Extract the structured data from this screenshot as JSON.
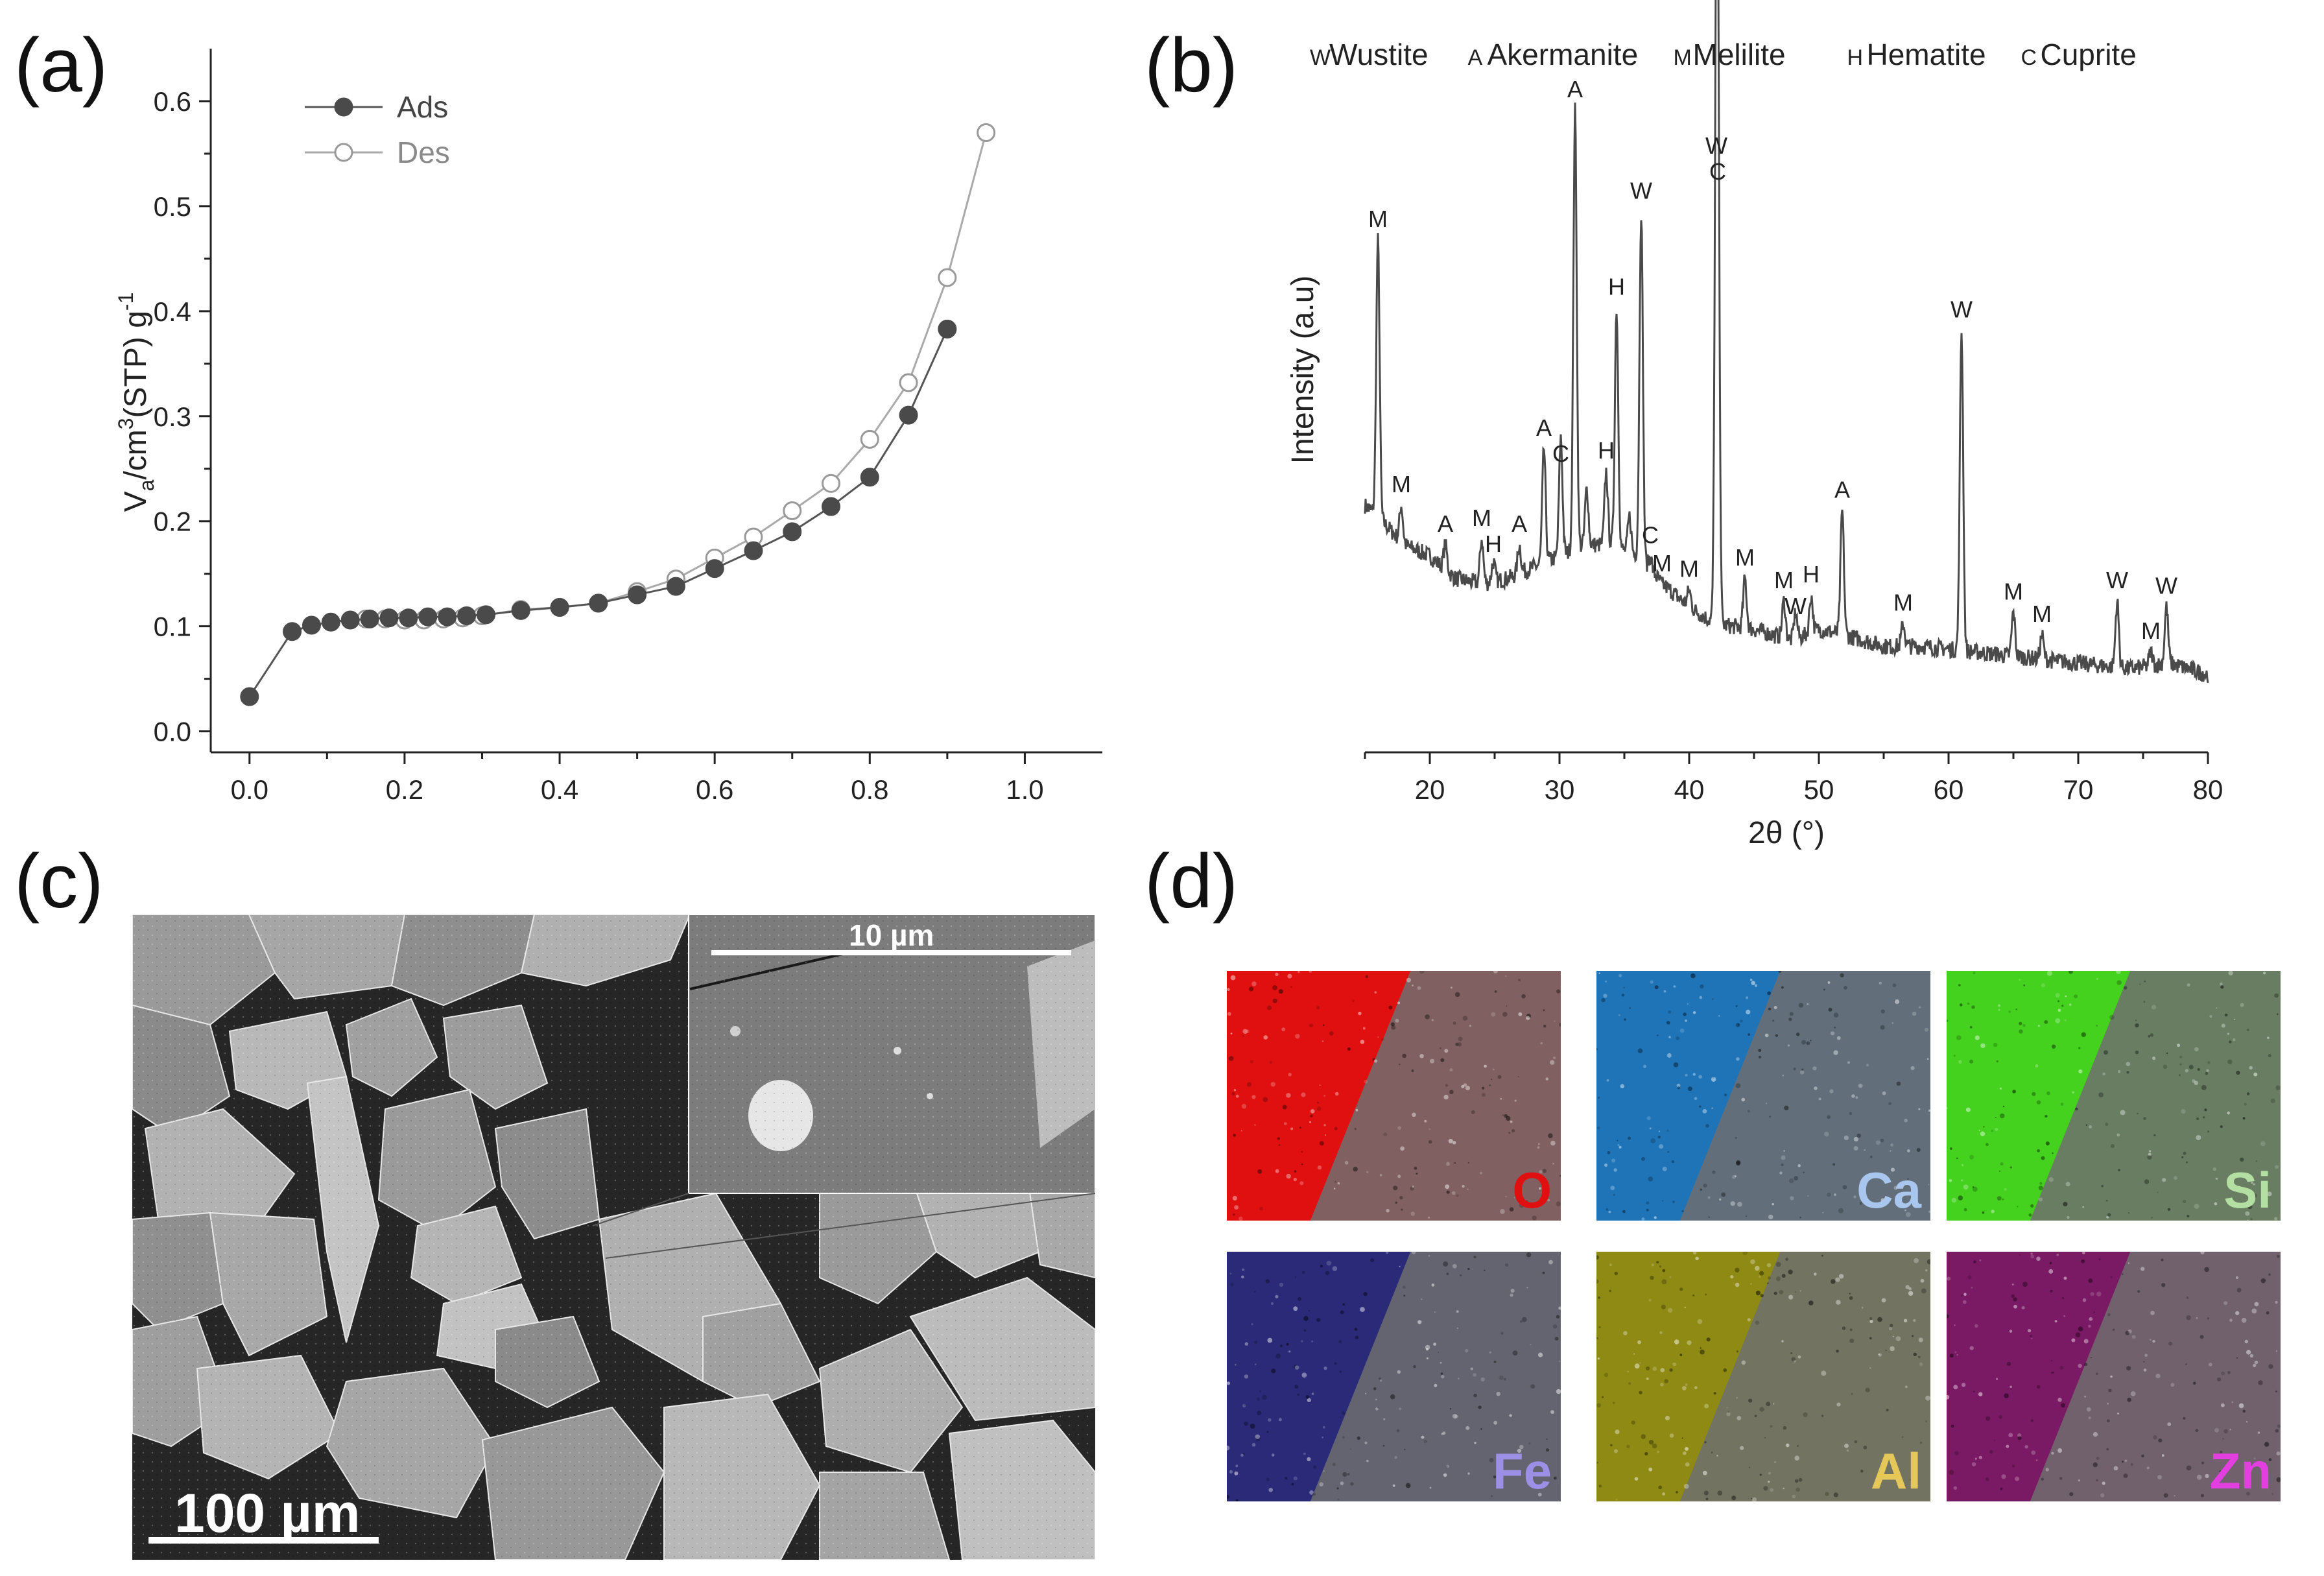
{
  "panels": {
    "a": "(a)",
    "b": "(b)",
    "c": "(c)",
    "d": "(d)"
  },
  "chart_data": [
    {
      "panel": "a",
      "type": "line",
      "ylabel_main": "V",
      "ylabel_sub": "a",
      "ylabel_mid": "/cm",
      "ylabel_sup3": "3",
      "ylabel_tail": "(STP) g",
      "ylabel_sup": "-1",
      "xlabel": "",
      "xlim": [
        -0.05,
        1.1
      ],
      "ylim": [
        -0.02,
        0.65
      ],
      "xticks": [
        "0.0",
        "0.2",
        "0.4",
        "0.6",
        "0.8",
        "1.0"
      ],
      "xtick_values": [
        0,
        0.2,
        0.4,
        0.6,
        0.8,
        1.0
      ],
      "yticks": [
        "0.0",
        "0.1",
        "0.2",
        "0.3",
        "0.4",
        "0.5",
        "0.6"
      ],
      "ytick_values": [
        0,
        0.1,
        0.2,
        0.3,
        0.4,
        0.5,
        0.6
      ],
      "legend_placement": "top-left",
      "series": [
        {
          "name": "Ads",
          "marker": "filled-circle",
          "color": "#555555",
          "x": [
            0.0,
            0.055,
            0.08,
            0.105,
            0.13,
            0.155,
            0.18,
            0.205,
            0.23,
            0.255,
            0.28,
            0.305,
            0.35,
            0.4,
            0.45,
            0.5,
            0.55,
            0.6,
            0.65,
            0.7,
            0.75,
            0.8,
            0.85,
            0.9
          ],
          "y": [
            0.033,
            0.095,
            0.101,
            0.104,
            0.106,
            0.107,
            0.108,
            0.108,
            0.109,
            0.109,
            0.11,
            0.111,
            0.115,
            0.118,
            0.122,
            0.13,
            0.138,
            0.155,
            0.172,
            0.19,
            0.214,
            0.242,
            0.301,
            0.383
          ]
        },
        {
          "name": "Des",
          "marker": "open-circle",
          "color": "#aaaaaa",
          "x": [
            0.95,
            0.9,
            0.85,
            0.8,
            0.75,
            0.7,
            0.65,
            0.6,
            0.55,
            0.5,
            0.45,
            0.4,
            0.35,
            0.3,
            0.275,
            0.25,
            0.225,
            0.2,
            0.175,
            0.15
          ],
          "y": [
            0.57,
            0.432,
            0.332,
            0.278,
            0.236,
            0.21,
            0.185,
            0.165,
            0.145,
            0.133,
            0.122,
            0.118,
            0.116,
            0.11,
            0.108,
            0.107,
            0.106,
            0.106,
            0.107,
            0.107
          ]
        }
      ]
    },
    {
      "panel": "b",
      "type": "line",
      "xlabel": "2θ (°)",
      "ylabel": "Intensity (a.u)",
      "xlim": [
        15,
        80
      ],
      "xticks": [
        "20",
        "30",
        "40",
        "50",
        "60",
        "70",
        "80"
      ],
      "xtick_values": [
        20,
        30,
        40,
        50,
        60,
        70,
        80
      ],
      "yticks_shown": false,
      "legend": [
        {
          "key": "W",
          "name": "Wustite"
        },
        {
          "key": "A",
          "name": "Akermanite"
        },
        {
          "key": "M",
          "name": "Melilite"
        },
        {
          "key": "H",
          "name": "Hematite"
        },
        {
          "key": "C",
          "name": "Cuprite"
        }
      ],
      "baseline": [
        [
          15,
          0.3
        ],
        [
          16,
          0.28
        ],
        [
          18,
          0.23
        ],
        [
          20,
          0.21
        ],
        [
          22,
          0.17
        ],
        [
          24,
          0.16
        ],
        [
          26,
          0.17
        ],
        [
          28,
          0.19
        ],
        [
          30,
          0.21
        ],
        [
          32,
          0.23
        ],
        [
          34,
          0.23
        ],
        [
          36,
          0.21
        ],
        [
          38,
          0.16
        ],
        [
          40,
          0.12
        ],
        [
          42,
          0.09
        ],
        [
          45,
          0.08
        ],
        [
          48,
          0.06
        ],
        [
          50,
          0.08
        ],
        [
          52,
          0.07
        ],
        [
          55,
          0.05
        ],
        [
          58,
          0.05
        ],
        [
          62,
          0.04
        ],
        [
          66,
          0.03
        ],
        [
          70,
          0.02
        ],
        [
          74,
          0.01
        ],
        [
          77,
          0.02
        ],
        [
          80,
          0.0
        ]
      ],
      "peaks": [
        {
          "x": 16.0,
          "h": 0.77,
          "label": "M"
        },
        {
          "x": 17.8,
          "h": 0.3,
          "label": "M"
        },
        {
          "x": 21.2,
          "h": 0.23,
          "label": "A"
        },
        {
          "x": 24.0,
          "h": 0.24,
          "label": "M"
        },
        {
          "x": 24.9,
          "h": 0.2,
          "label": "H"
        },
        {
          "x": 26.9,
          "h": 0.23,
          "label": "A"
        },
        {
          "x": 28.8,
          "h": 0.4,
          "label": "A"
        },
        {
          "x": 30.1,
          "h": 0.42,
          "label": "C"
        },
        {
          "x": 31.2,
          "h": 1.0,
          "label": "A"
        },
        {
          "x": 32.1,
          "h": 0.33,
          "label": ""
        },
        {
          "x": 33.6,
          "h": 0.36,
          "label": "H"
        },
        {
          "x": 34.4,
          "h": 0.65,
          "label": "H"
        },
        {
          "x": 35.4,
          "h": 0.28,
          "label": ""
        },
        {
          "x": 36.3,
          "h": 0.82,
          "label": "W"
        },
        {
          "x": 37.0,
          "h": 0.21,
          "label": "C"
        },
        {
          "x": 37.9,
          "h": 0.16,
          "label": "M"
        },
        {
          "x": 40.0,
          "h": 0.15,
          "label": "M"
        },
        {
          "x": 42.1,
          "h": 0.9,
          "label": "W"
        },
        {
          "x": 42.2,
          "h": 0.88,
          "label": "C"
        },
        {
          "x": 44.3,
          "h": 0.17,
          "label": "M"
        },
        {
          "x": 47.3,
          "h": 0.13,
          "label": "M"
        },
        {
          "x": 48.2,
          "h": 0.11,
          "label": "W"
        },
        {
          "x": 49.4,
          "h": 0.14,
          "label": "H"
        },
        {
          "x": 51.8,
          "h": 0.29,
          "label": "A"
        },
        {
          "x": 56.5,
          "h": 0.09,
          "label": "M"
        },
        {
          "x": 61.0,
          "h": 0.61,
          "label": "W"
        },
        {
          "x": 65.0,
          "h": 0.11,
          "label": "M"
        },
        {
          "x": 67.2,
          "h": 0.07,
          "label": "M"
        },
        {
          "x": 73.0,
          "h": 0.13,
          "label": "W"
        },
        {
          "x": 75.6,
          "h": 0.04,
          "label": "M"
        },
        {
          "x": 76.8,
          "h": 0.12,
          "label": "W"
        }
      ]
    }
  ],
  "sem": {
    "scale_main": "100 µm",
    "scale_inset": "10 µm"
  },
  "eds": {
    "maps": [
      {
        "element": "O",
        "color": "#e01010",
        "label_color": "#e01010",
        "row": 0,
        "col": 0
      },
      {
        "element": "Ca",
        "color": "#1f74b8",
        "label_color": "#a9c6ee",
        "row": 0,
        "col": 1
      },
      {
        "element": "Si",
        "color": "#44d21e",
        "label_color": "#b3dfa3",
        "row": 0,
        "col": 2
      },
      {
        "element": "Fe",
        "color": "#2a2a78",
        "label_color": "#9b8fe6",
        "row": 1,
        "col": 0
      },
      {
        "element": "Al",
        "color": "#8f8a14",
        "label_color": "#e6c85a",
        "row": 1,
        "col": 1
      },
      {
        "element": "Zn",
        "color": "#7a1a64",
        "label_color": "#e23ee0",
        "row": 1,
        "col": 2
      }
    ]
  }
}
